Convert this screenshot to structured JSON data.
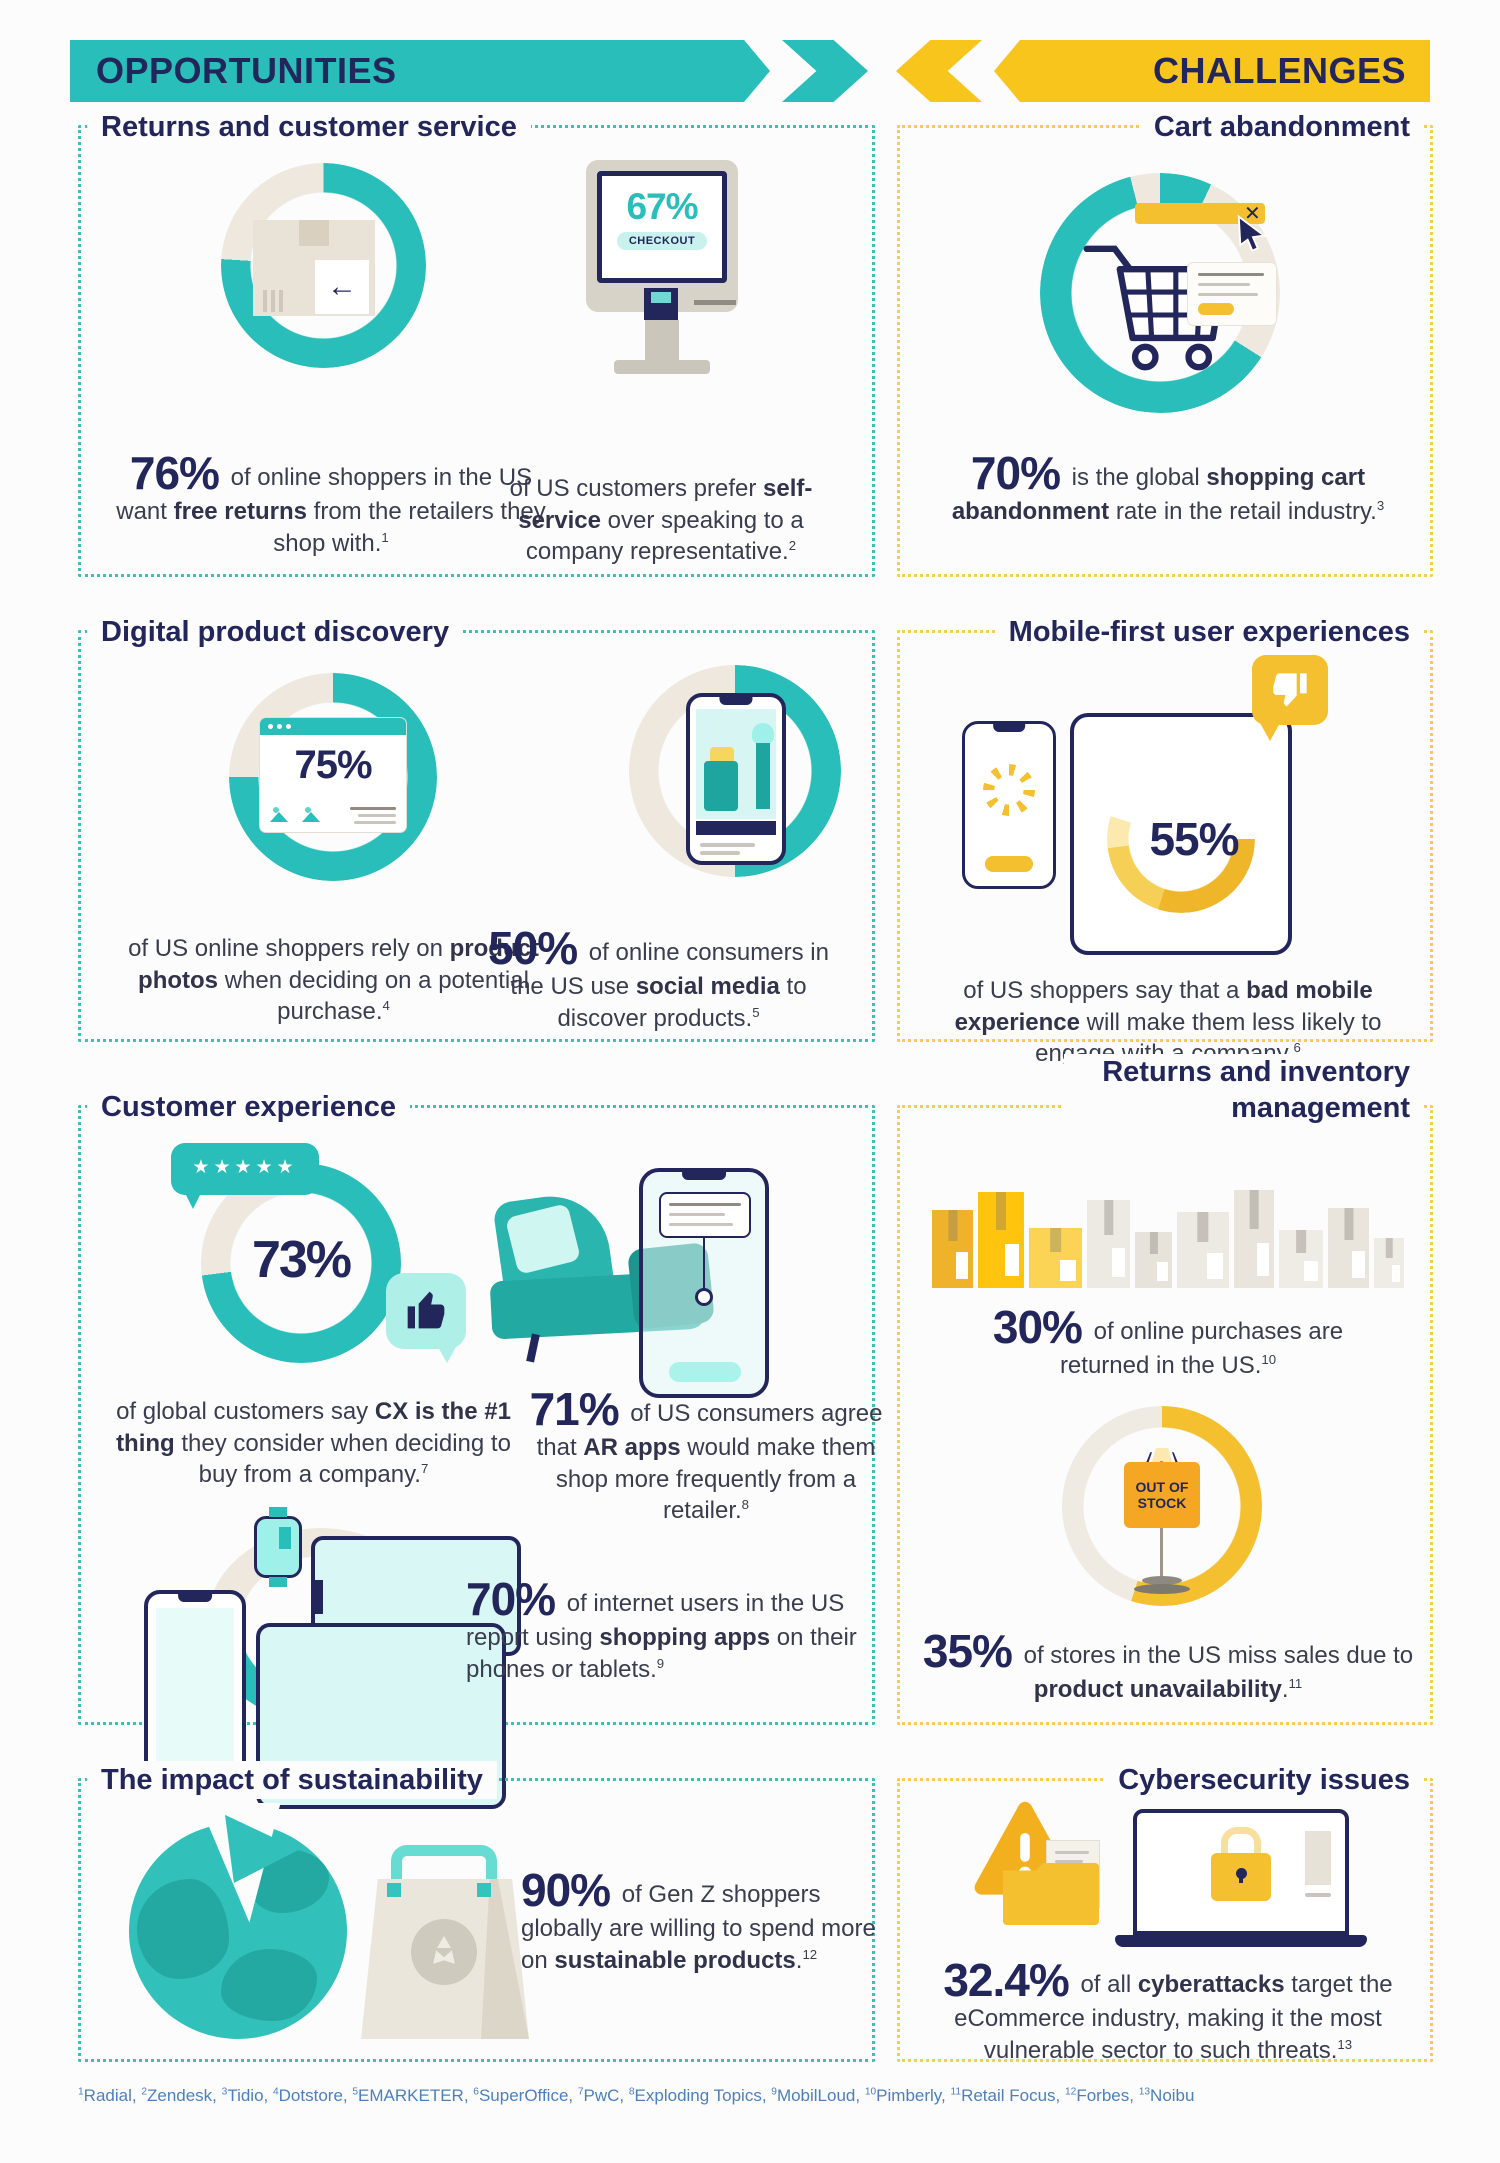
{
  "colors": {
    "teal": "#29beba",
    "yellow": "#f8c51c",
    "navy": "#23265b",
    "cream": "#eee8de"
  },
  "banners": {
    "left": "OPPORTUNITIES",
    "right": "CHALLENGES"
  },
  "sections": {
    "returns_cs": {
      "title": "Returns and customer service",
      "stat1": "{{76%}} of online shoppers in the US want **free returns** from the retailers they shop with.^1^",
      "monitor_value": "67%",
      "monitor_label": "CHECKOUT",
      "stat2": "of US customers prefer **self-service** over speaking to a company representative.^2^"
    },
    "cart_abandonment": {
      "title": "Cart abandonment",
      "stat": "{{70%}} is the global **shopping cart abandonment** rate in the retail industry.^3^"
    },
    "digital_discovery": {
      "title": "Digital product discovery",
      "donut_value": "75%",
      "stat1": "of US online shoppers rely on **product photos** when deciding on a potential purchase.^4^",
      "stat2": "{{50%}} of online consumers in the US use **social media** to discover products.^5^"
    },
    "mobile_first": {
      "title": "Mobile-first user experiences",
      "donut_value": "55%",
      "stat": "of US shoppers say that a **bad mobile experience** will make them less likely to engage with a company.^6^"
    },
    "customer_experience": {
      "title": "Customer experience",
      "donut_value": "73%",
      "stat1": "of global customers say **CX is the #1 thing** they consider when deciding to buy from a company.^7^",
      "stat2": "{{71%}} of US consumers agree that **AR apps** would make them shop more frequently from a retailer.^8^",
      "stat3": "{{70%}} of internet users in the US report using **shopping apps** on their phones or tablets.^9^"
    },
    "returns_inventory": {
      "title": "Returns and inventory management",
      "stat1": "{{30%}} of online purchases are returned in the US.^10^",
      "sign_label": "OUT OF STOCK",
      "stat2": "{{35%}} of stores in the US miss sales due to **product unavailability**.^11^"
    },
    "sustainability": {
      "title": "The impact of sustainability",
      "stat": "{{90%}} of Gen Z shoppers globally are willing to spend more on **sustainable products**.^12^"
    },
    "cybersecurity": {
      "title": "Cybersecurity issues",
      "stat": "{{32.4%}} of all **cyberattacks** target the eCommerce industry, making it the most vulnerable sector to such threats.^13^"
    }
  },
  "footnote": {
    "sources": [
      {
        "sup": "1",
        "name": "Radial"
      },
      {
        "sup": "2",
        "name": "Zendesk"
      },
      {
        "sup": "3",
        "name": "Tidio"
      },
      {
        "sup": "4",
        "name": "Dotstore"
      },
      {
        "sup": "5",
        "name": "EMARKETER"
      },
      {
        "sup": "6",
        "name": "SuperOffice"
      },
      {
        "sup": "7",
        "name": "PwC"
      },
      {
        "sup": "8",
        "name": "Exploding Topics"
      },
      {
        "sup": "9",
        "name": "MobilLoud"
      },
      {
        "sup": "10",
        "name": "Pimberly"
      },
      {
        "sup": "11",
        "name": "Retail Focus"
      },
      {
        "sup": "12",
        "name": "Forbes"
      },
      {
        "sup": "13",
        "name": "Noibu"
      }
    ]
  }
}
